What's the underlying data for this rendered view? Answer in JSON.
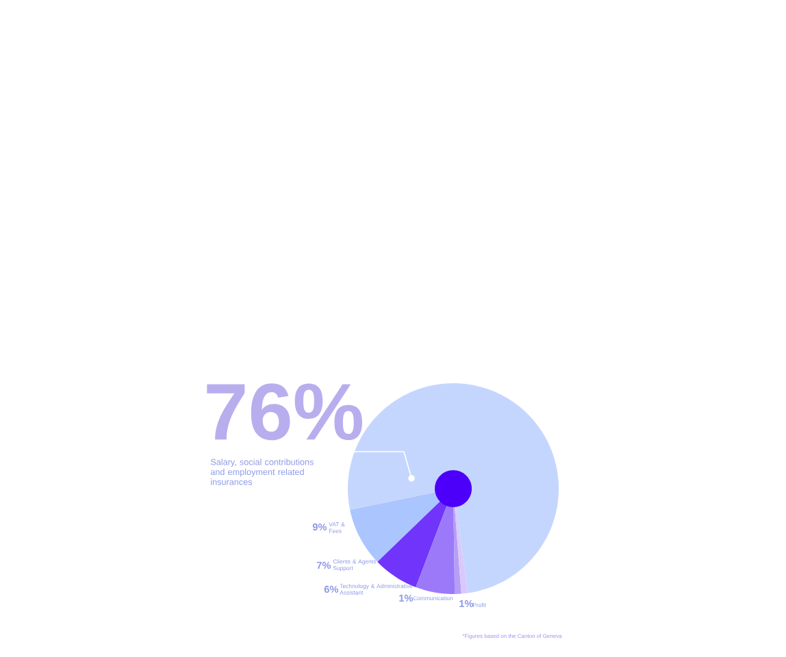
{
  "chart_data": {
    "type": "pie",
    "categories": [
      "Salary, social contributions and employment related insurances",
      "VAT & Fees",
      "Clients & Agents Support",
      "Technology & Administrative Assistant",
      "Communication",
      "Profit"
    ],
    "values": [
      76,
      9,
      7,
      6,
      1,
      1
    ],
    "colors": [
      "#c5d6fe",
      "#abc5fe",
      "#7034fa",
      "#9b79f9",
      "#b69ef8",
      "#d9c9fa"
    ],
    "value_labels": [
      "76%",
      "9%",
      "7%",
      "6%",
      "1%",
      "1%"
    ],
    "annotations": [
      "*Figures based on the Canton of Geneva"
    ]
  }
}
